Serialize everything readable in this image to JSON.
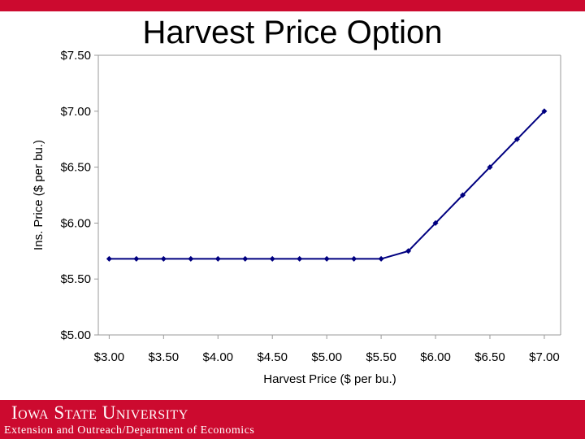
{
  "slide": {
    "title": "Harvest Price Option",
    "footer_logo": "Iowa State University",
    "footer_subtitle": "Extension and Outreach/Department of Economics",
    "accent_color": "#cc0a2f"
  },
  "chart_data": {
    "type": "line",
    "xlabel": "Harvest Price ($ per bu.)",
    "ylabel": "Ins. Price ($ per bu.)",
    "x_tick_labels": [
      "$3.00",
      "$3.50",
      "$4.00",
      "$4.50",
      "$5.00",
      "$5.50",
      "$6.00",
      "$6.50",
      "$7.00"
    ],
    "x_ticks": [
      3.0,
      3.5,
      4.0,
      4.5,
      5.0,
      5.5,
      6.0,
      6.5,
      7.0
    ],
    "y_tick_labels": [
      "$5.00",
      "$5.50",
      "$6.00",
      "$6.50",
      "$7.00",
      "$7.50"
    ],
    "y_ticks": [
      5.0,
      5.5,
      6.0,
      6.5,
      7.0,
      7.5
    ],
    "xlim": [
      2.9,
      7.15
    ],
    "ylim": [
      5.0,
      7.5
    ],
    "grid": false,
    "line_color": "#000080",
    "series": [
      {
        "x": [
          3.0,
          3.25,
          3.5,
          3.75,
          4.0,
          4.25,
          4.5,
          4.75,
          5.0,
          5.25,
          5.5,
          5.75,
          6.0,
          6.25,
          6.5,
          6.75,
          7.0
        ],
        "values": [
          5.68,
          5.68,
          5.68,
          5.68,
          5.68,
          5.68,
          5.68,
          5.68,
          5.68,
          5.68,
          5.68,
          5.75,
          6.0,
          6.25,
          6.5,
          6.75,
          7.0
        ]
      }
    ]
  }
}
